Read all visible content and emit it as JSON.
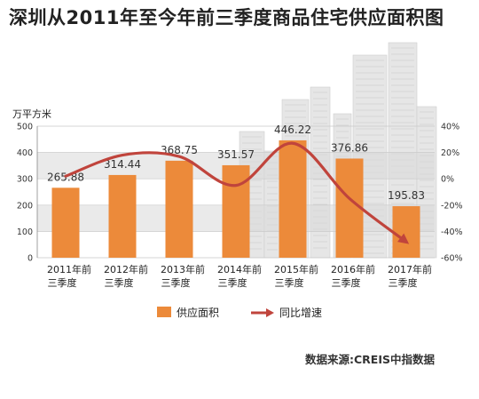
{
  "chart_data": {
    "type": "bar",
    "title": "深圳从2011年至今年前三季度商品住宅供应面积图",
    "y_unit": "万平方米",
    "categories": [
      [
        "2011年前",
        "三季度"
      ],
      [
        "2012年前",
        "三季度"
      ],
      [
        "2013年前",
        "三季度"
      ],
      [
        "2014年前",
        "三季度"
      ],
      [
        "2015年前",
        "三季度"
      ],
      [
        "2016年前",
        "三季度"
      ],
      [
        "2017年前",
        "三季度"
      ]
    ],
    "series": [
      {
        "name": "供应面积",
        "type": "bar",
        "axis": "left",
        "values": [
          265.88,
          314.44,
          368.75,
          351.57,
          446.22,
          376.86,
          195.83
        ],
        "labels": [
          "265.88",
          "314.44",
          "368.75",
          "351.57",
          "446.22",
          "376.86",
          "195.83"
        ],
        "color": "#EC8A3A"
      },
      {
        "name": "同比增速",
        "type": "line",
        "axis": "right",
        "values": [
          2,
          18,
          17,
          -5,
          27,
          -15,
          -48
        ],
        "color": "#C0443C"
      }
    ],
    "y_left": {
      "min": 0,
      "max": 500,
      "ticks": [
        0,
        100,
        200,
        300,
        400,
        500
      ]
    },
    "y_right": {
      "min": -60,
      "max": 40,
      "ticks": [
        "40%",
        "20%",
        "0%",
        "-20%",
        "-40%",
        "-60%"
      ]
    },
    "legend_position": "bottom",
    "source": "数据来源:CREIS中指数据"
  }
}
